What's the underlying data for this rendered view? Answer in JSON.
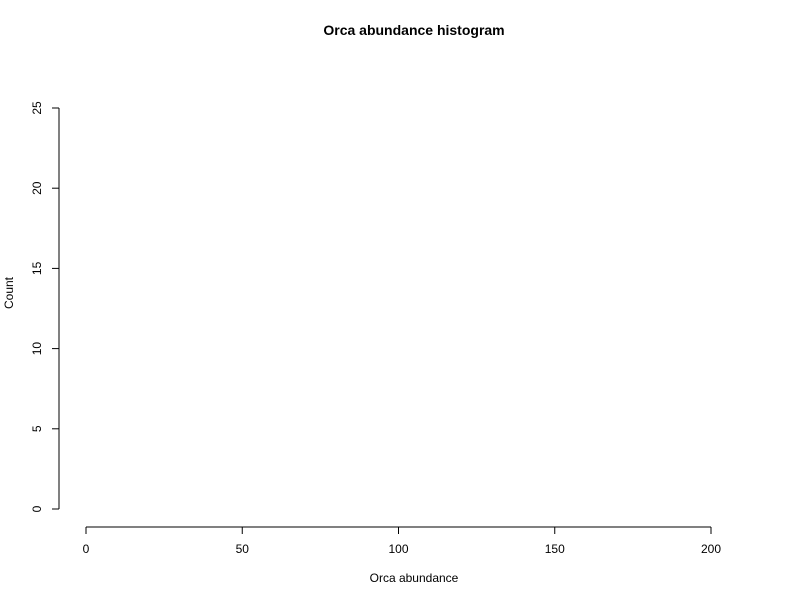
{
  "chart_data": {
    "type": "bar",
    "title": "Orca abundance histogram",
    "xlabel": "Orca abundance",
    "ylabel": "Count",
    "xlim": [
      0,
      200
    ],
    "ylim": [
      0,
      25
    ],
    "x_ticks": [
      0,
      50,
      100,
      150,
      200
    ],
    "y_ticks": [
      0,
      5,
      10,
      15,
      20,
      25
    ],
    "bins": [],
    "grid": false,
    "colors": {
      "axis": "#000000",
      "text": "#000000",
      "background": "#ffffff"
    }
  }
}
